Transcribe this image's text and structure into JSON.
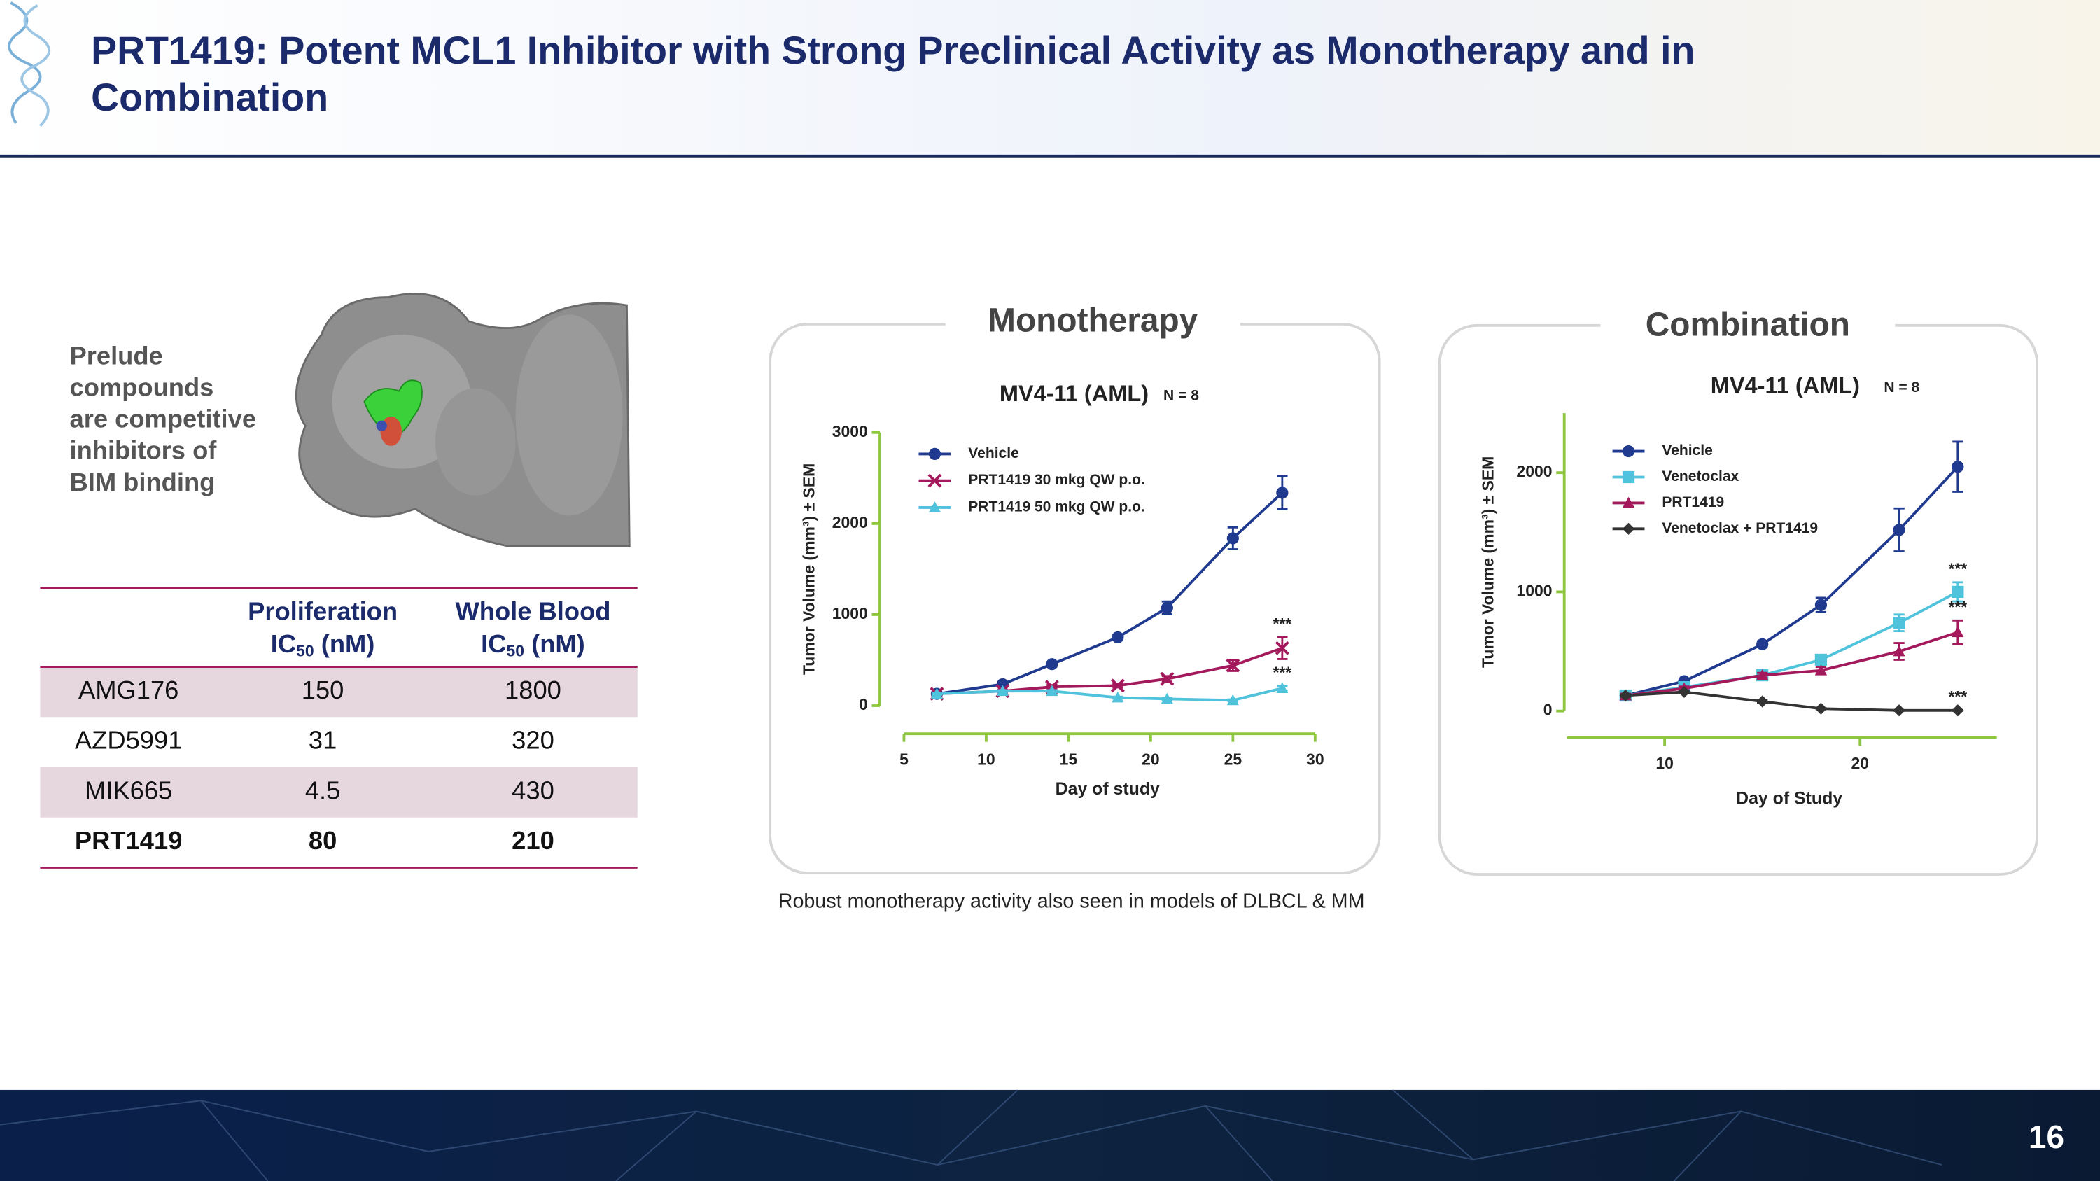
{
  "header": {
    "title_lines": [
      "PRT1419: Potent MCL1 Inhibitor with Strong Preclinical Activity as Monotherapy and in",
      "Combination"
    ]
  },
  "structure": {
    "caption_lines": [
      "Prelude",
      "compounds",
      "are competitive",
      "inhibitors of",
      "BIM binding"
    ]
  },
  "table": {
    "header": [
      {
        "line1": "Proliferation",
        "ic": "IC",
        "sub": "50",
        "unit": " (nM)"
      },
      {
        "line1": "Whole Blood",
        "ic": "IC",
        "sub": "50",
        "unit": " (nM)"
      }
    ],
    "rows": [
      {
        "cells": [
          "AMG176",
          "150",
          "1800"
        ],
        "shaded": true,
        "bold": false
      },
      {
        "cells": [
          "AZD5991",
          "31",
          "320"
        ],
        "shaded": false,
        "bold": false
      },
      {
        "cells": [
          "MIK665",
          "4.5",
          "430"
        ],
        "shaded": true,
        "bold": false
      },
      {
        "cells": [
          "PRT1419",
          "80",
          "210"
        ],
        "shaded": false,
        "bold": true
      }
    ]
  },
  "chart_data": [
    {
      "type": "line",
      "section": "Monotherapy",
      "title": "MV4-11 (AML)",
      "subtitle": "N = 8",
      "x_label": "Day of study",
      "y_label": "Tumor Volume (mm³) ± SEM",
      "x": [
        7,
        11,
        14,
        18,
        21,
        25,
        28
      ],
      "xlim": [
        5,
        30
      ],
      "xticks": [
        5,
        10,
        15,
        20,
        25,
        30
      ],
      "ylim": [
        0,
        3000
      ],
      "yticks": [
        0,
        1000,
        2000,
        3000
      ],
      "axis_color": "#8dc63f",
      "series": [
        {
          "name": "Vehicle",
          "color": "#1f3a8f",
          "marker": "circle",
          "values": [
            130,
            235,
            456,
            750,
            1074,
            1838,
            2338
          ],
          "errors": [
            15,
            20,
            25,
            30,
            70,
            120,
            180
          ]
        },
        {
          "name": "PRT1419 30 mkg QW p.o.",
          "color": "#a3195b",
          "marker": "x",
          "values": [
            130,
            160,
            206,
            220,
            294,
            441,
            632
          ],
          "errors": [
            15,
            15,
            20,
            20,
            30,
            60,
            120
          ],
          "significance": "***"
        },
        {
          "name": "PRT1419 50 mkg QW p.o.",
          "color": "#4fc3dc",
          "marker": "triangle",
          "values": [
            130,
            160,
            160,
            88,
            74,
            59,
            191
          ],
          "errors": [
            10,
            10,
            10,
            10,
            10,
            10,
            25
          ],
          "significance": "***"
        }
      ]
    },
    {
      "type": "line",
      "section": "Combination",
      "title": "MV4-11 (AML)",
      "subtitle": "N = 8",
      "x_label": "Day of Study",
      "y_label": "Tumor Volume (mm³) ± SEM",
      "x": [
        8,
        11,
        15,
        18,
        22,
        25
      ],
      "xlim": [
        5,
        27
      ],
      "xticks": [
        10,
        20
      ],
      "ylim": [
        0,
        2500
      ],
      "yticks": [
        0,
        1000,
        2000
      ],
      "axis_color": "#8dc63f",
      "series": [
        {
          "name": "Vehicle",
          "color": "#1f3a8f",
          "marker": "circle",
          "values": [
            130,
            250,
            560,
            890,
            1520,
            2050
          ],
          "errors": [
            20,
            20,
            25,
            60,
            180,
            210
          ]
        },
        {
          "name": "Venetoclax",
          "color": "#4fc3dc",
          "marker": "square",
          "values": [
            130,
            200,
            300,
            430,
            740,
            1000
          ],
          "errors": [
            15,
            15,
            20,
            30,
            70,
            80
          ],
          "significance": "***"
        },
        {
          "name": "PRT1419",
          "color": "#a3195b",
          "marker": "triangle",
          "values": [
            130,
            190,
            300,
            340,
            500,
            660
          ],
          "errors": [
            15,
            15,
            20,
            30,
            70,
            100
          ],
          "significance": "***"
        },
        {
          "name": "Venetoclax + PRT1419",
          "color": "#333333",
          "marker": "diamond",
          "values": [
            130,
            160,
            80,
            20,
            5,
            5
          ],
          "errors": [
            10,
            10,
            10,
            5,
            3,
            3
          ],
          "significance": "***"
        }
      ]
    }
  ],
  "footnote": "Robust monotherapy activity also seen in models of DLBCL & MM",
  "page_number": "16"
}
